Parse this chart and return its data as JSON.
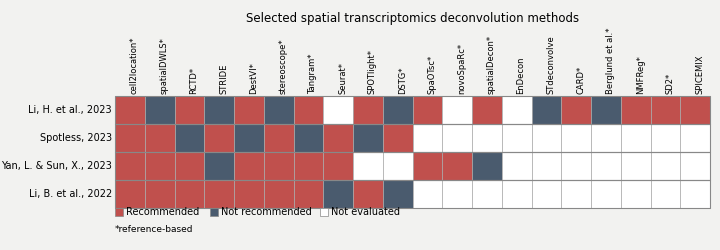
{
  "title": "Selected spatial transcriptomics deconvolution methods",
  "columns": [
    "cell2location*",
    "spatialDWLS*",
    "RCTD*",
    "STRIDE",
    "DestVI*",
    "stereoscope*",
    "Tangram*",
    "Seurat*",
    "SPOTlight*",
    "DSTG*",
    "SpaOTsc*",
    "novoSpaRc*",
    "spatialDecon*",
    "EnDecon",
    "STdeconvolve",
    "CARD*",
    "Berglund et al.*",
    "NMFReg*",
    "SD2*",
    "SPICEMIX"
  ],
  "rows": [
    "Li, H. et al., 2023",
    "Spotless, 2023",
    "Yan, L. & Sun, X., 2023",
    "Li, B. et al., 2022"
  ],
  "grid": [
    [
      "R",
      "B",
      "R",
      "B",
      "R",
      "B",
      "R",
      "N",
      "R",
      "B",
      "R",
      "N",
      "R",
      "N",
      "B",
      "R",
      "B",
      "R",
      "R",
      "R"
    ],
    [
      "R",
      "R",
      "B",
      "R",
      "B",
      "R",
      "B",
      "R",
      "B",
      "R",
      "N",
      "N",
      "N",
      "N",
      "N",
      "N",
      "N",
      "N",
      "N",
      "N"
    ],
    [
      "R",
      "R",
      "R",
      "B",
      "R",
      "R",
      "R",
      "R",
      "N",
      "N",
      "R",
      "R",
      "B",
      "N",
      "N",
      "N",
      "N",
      "N",
      "N",
      "N"
    ],
    [
      "R",
      "R",
      "R",
      "R",
      "R",
      "R",
      "R",
      "B",
      "R",
      "B",
      "N",
      "N",
      "N",
      "N",
      "N",
      "N",
      "N",
      "N",
      "N",
      "N"
    ]
  ],
  "color_R": "#c0504d",
  "color_B": "#4a5b6e",
  "color_N": "#ffffff",
  "cell_edge": "#aaaaaa",
  "legend_R": "Recommended",
  "legend_B": "Not recommended",
  "legend_N": "Not evaluated",
  "background": "#f2f2f0",
  "col_label_fontsize": 6.0,
  "row_label_fontsize": 7.0,
  "title_fontsize": 8.5
}
